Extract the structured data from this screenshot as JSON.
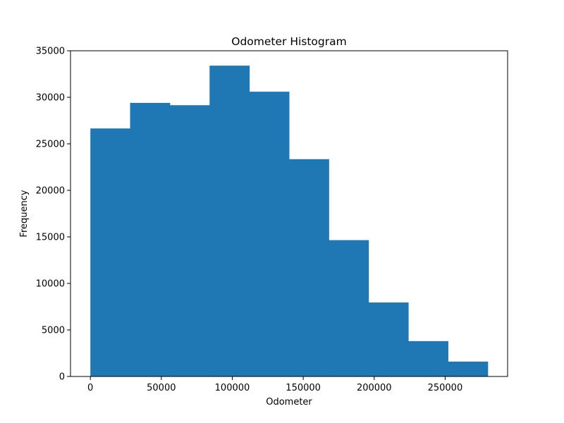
{
  "chart_data": {
    "type": "bar",
    "title": "Odometer Histogram",
    "xlabel": "Odometer",
    "ylabel": "Frequency",
    "bin_edges": [
      0,
      28000,
      56000,
      84000,
      112000,
      140000,
      168000,
      196000,
      224000,
      252000,
      280000
    ],
    "values": [
      26650,
      29400,
      29150,
      33400,
      30600,
      23350,
      14650,
      7950,
      3800,
      1600
    ],
    "xlim": [
      -14000,
      294000
    ],
    "ylim": [
      0,
      35000
    ],
    "xticks": [
      0,
      50000,
      100000,
      150000,
      200000,
      250000
    ],
    "yticks": [
      0,
      5000,
      10000,
      15000,
      20000,
      25000,
      30000,
      35000
    ],
    "bar_color": "#1f77b4",
    "grid": false
  }
}
